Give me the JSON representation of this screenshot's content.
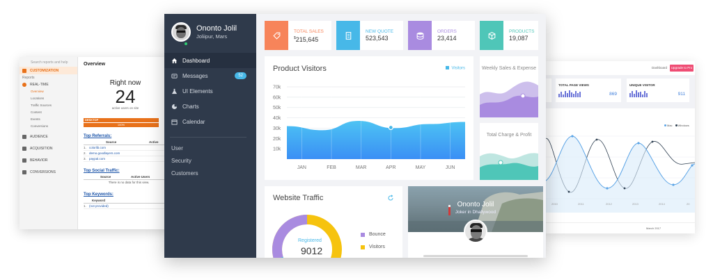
{
  "left_panel": {
    "search_placeholder": "Search reports and help",
    "customization": "CUSTOMIZATION",
    "reports_header": "Reports",
    "realtime": "REAL-TIME",
    "realtime_items": [
      "Overview",
      "Locations",
      "Traffic Sources",
      "Content",
      "Events",
      "Conversions"
    ],
    "audience": "AUDIENCE",
    "acquisition": "ACQUISITION",
    "behavior": "BEHAVIOR",
    "conversions": "CONVERSIONS",
    "title": "Overview",
    "right_now": "Right now",
    "active_users": "24",
    "active_users_caption": "active users on site",
    "device_label": "DESKTOP",
    "device_percent": "100%",
    "top_referrals": "Top Referrals:",
    "referrals_header": {
      "source": "Source",
      "active": "Active"
    },
    "referrals": [
      {
        "n": "1.",
        "source": "colorlib.com"
      },
      {
        "n": "2.",
        "source": "demo.goodlayers.com"
      },
      {
        "n": "3.",
        "source": "paypal.com"
      }
    ],
    "top_social": "Top Social Traffic:",
    "social_header": {
      "source": "Source",
      "active": "Active Users"
    },
    "social_empty": "There is no data for this view.",
    "top_keywords": "Top Keywords:",
    "keywords_header": "Keyword",
    "keywords": [
      {
        "n": "1.",
        "keyword": "(not provided)"
      }
    ]
  },
  "right_panel": {
    "dashboard": "Dashboard",
    "upgrade": "Upgrade to Pro",
    "cards": [
      {
        "title": "",
        "value": ""
      },
      {
        "title": "TOTAL PAGE VIEWS",
        "value": "869"
      },
      {
        "title": "UNIQUE VISITOR",
        "value": "911"
      }
    ],
    "legend": [
      "Mac",
      "Windows"
    ],
    "x_labels": [
      "2010",
      "2011",
      "2012",
      "2013",
      "2014",
      "20"
    ],
    "footer_text": "March 2017"
  },
  "profile": {
    "name": "Ononto Jolil",
    "city": "Joliipur, Mars"
  },
  "nav": [
    {
      "label": "Dashboard",
      "icon": "home-icon"
    },
    {
      "label": "Messages",
      "icon": "message-icon",
      "badge": "52"
    },
    {
      "label": "UI Elements",
      "icon": "flask-icon"
    },
    {
      "label": "Charts",
      "icon": "pie-chart-icon"
    },
    {
      "label": "Calendar",
      "icon": "calendar-icon"
    }
  ],
  "nav_secondary": [
    "User",
    "Security",
    "Customers"
  ],
  "stats": [
    {
      "label": "TOTAL SALES",
      "value": "215,645",
      "currency": "$",
      "color": "#f7845a"
    },
    {
      "label": "NEW QUOTE",
      "value": "523,543",
      "color": "#47b8e8"
    },
    {
      "label": "ORDERS",
      "value": "23,414",
      "color": "#a98be0"
    },
    {
      "label": "PRODUCTS",
      "value": "19,087",
      "color": "#4fc6b8"
    }
  ],
  "product_visitors": {
    "title": "Product Visitors",
    "legend": "Visitors"
  },
  "chart_data": {
    "type": "area",
    "title": "Product Visitors",
    "categories": [
      "JAN",
      "FEB",
      "MAR",
      "APR",
      "MAY",
      "JUN"
    ],
    "yticks": [
      "70k",
      "60k",
      "50k",
      "40k",
      "30k",
      "20k",
      "10k"
    ],
    "ylim": [
      0,
      70000
    ],
    "series": [
      {
        "name": "Visitors",
        "values": [
          32000,
          28000,
          37000,
          30000,
          34000,
          36000
        ]
      }
    ],
    "highlight_index": 3,
    "grid": true,
    "legend_position": "top-right"
  },
  "weekly": {
    "title": "Weekly Sales & Expense"
  },
  "total_charge": {
    "title": "Total Charge & Profit"
  },
  "website_traffic": {
    "title": "Website Traffic",
    "center_label": "Registered",
    "center_value": "9012",
    "legend": [
      {
        "label": "Bounce",
        "color": "#a98be0"
      },
      {
        "label": "Visitors",
        "color": "#f6c30e"
      }
    ]
  },
  "joker": {
    "name": "Ononto Jolil",
    "subtitle": "Joker in Dhallywood"
  }
}
